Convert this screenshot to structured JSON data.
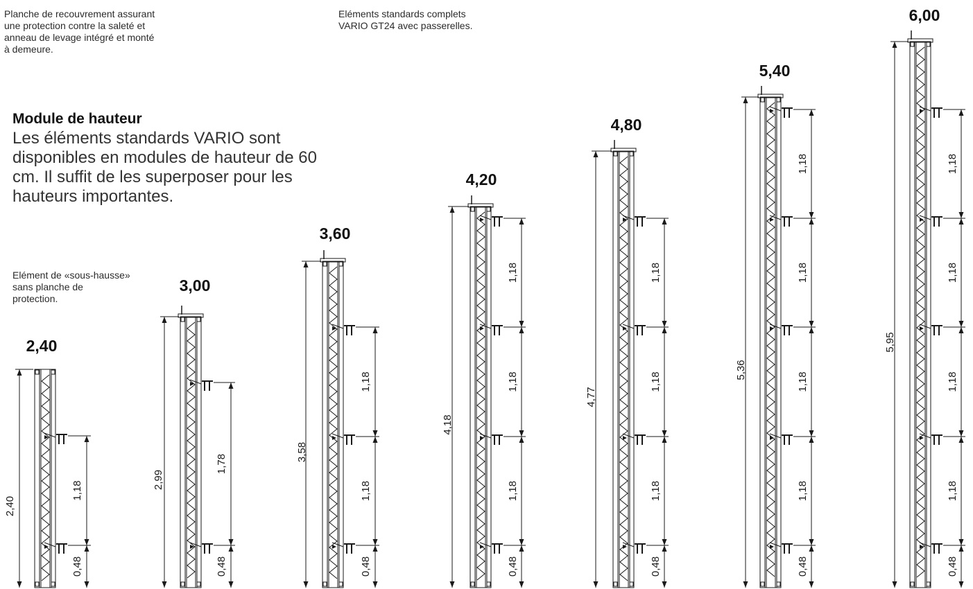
{
  "notes": {
    "cover_plank": "Planche de recouvrement assurant\nune protection contre la saleté et\nanneau de levage intégré et monté\nà demeure.",
    "standard": "Eléments standards complets\nVARIO GT24 avec passerelles.",
    "sub_raise": "Elément de «sous-hausse»\nsans planche de\nprotection."
  },
  "module": {
    "title": "Module de hauteur",
    "text": "Les éléments standards VARIO sont disponibles en modules de hauteur de 60 cm. Il suffit de les superposer pour les hauteurs importantes."
  },
  "elements": [
    {
      "height_label": "2,40",
      "overall_dim": "2,40",
      "segments": [
        "1,18",
        "0,48"
      ]
    },
    {
      "height_label": "3,00",
      "overall_dim": "2,99",
      "segments": [
        "1,78",
        "0,48"
      ]
    },
    {
      "height_label": "3,60",
      "overall_dim": "3,58",
      "segments": [
        "1,18",
        "1,18",
        "0,48"
      ]
    },
    {
      "height_label": "4,20",
      "overall_dim": "4,18",
      "segments": [
        "1,18",
        "1,18",
        "1,18",
        "0,48"
      ]
    },
    {
      "height_label": "4,80",
      "overall_dim": "4,77",
      "segments": [
        "1,18",
        "1,18",
        "1,18",
        "0,48"
      ]
    },
    {
      "height_label": "5,40",
      "overall_dim": "5,36",
      "segments": [
        "1,18",
        "1,18",
        "1,18",
        "1,18",
        "0,48"
      ]
    },
    {
      "height_label": "6,00",
      "overall_dim": "5,95",
      "segments": [
        "1,18",
        "1,18",
        "1,18",
        "1,18",
        "0,48"
      ]
    }
  ],
  "colors": {
    "line": "#1a1a1a",
    "text": "#111111"
  }
}
